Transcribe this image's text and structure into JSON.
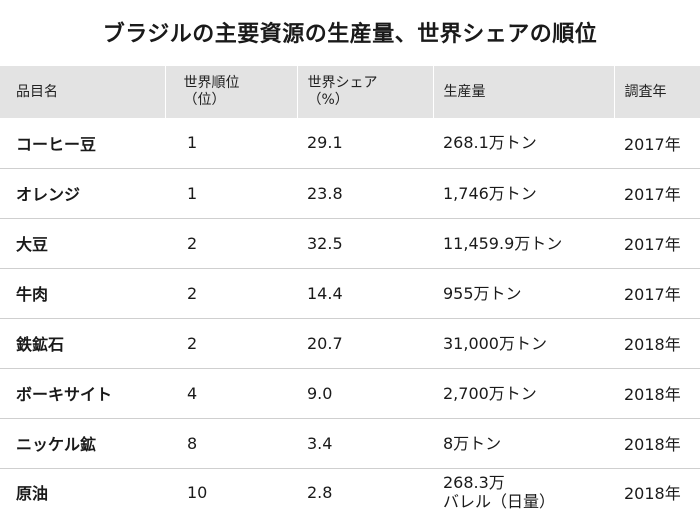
{
  "title": "ブラジルの主要資源の生産量、世界シェアの順位",
  "headers": {
    "item": "品目名",
    "rank_line1": "世界順位",
    "rank_line2": "（位）",
    "share_line1": "世界シェア",
    "share_line2": "（%）",
    "production": "生産量",
    "year": "調査年"
  },
  "rows": [
    {
      "name": "コーヒー豆",
      "rank": "1",
      "share": "29.1",
      "production": "268.1万トン",
      "production_line2": "",
      "year": "2017年"
    },
    {
      "name": "オレンジ",
      "rank": "1",
      "share": "23.8",
      "production": "1,746万トン",
      "production_line2": "",
      "year": "2017年"
    },
    {
      "name": "大豆",
      "rank": "2",
      "share": "32.5",
      "production": "11,459.9万トン",
      "production_line2": "",
      "year": "2017年"
    },
    {
      "name": "牛肉",
      "rank": "2",
      "share": "14.4",
      "production": "955万トン",
      "production_line2": "",
      "year": "2017年"
    },
    {
      "name": "鉄鉱石",
      "rank": "2",
      "share": "20.7",
      "production": "31,000万トン",
      "production_line2": "",
      "year": "2018年"
    },
    {
      "name": "ボーキサイト",
      "rank": "4",
      "share": "9.0",
      "production": "2,700万トン",
      "production_line2": "",
      "year": "2018年"
    },
    {
      "name": "ニッケル鉱",
      "rank": "8",
      "share": "3.4",
      "production": "8万トン",
      "production_line2": "",
      "year": "2018年"
    },
    {
      "name": "原油",
      "rank": "10",
      "share": "2.8",
      "production": "268.3万",
      "production_line2": "バレル（日量）",
      "year": "2018年"
    }
  ]
}
